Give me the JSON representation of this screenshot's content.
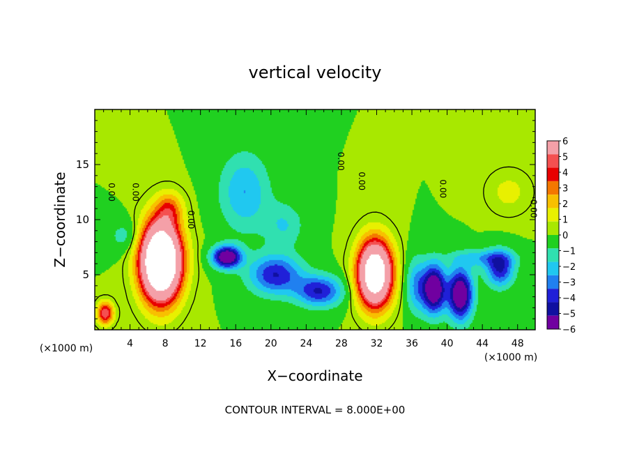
{
  "chart_data": {
    "type": "heatmap",
    "title": "vertical velocity",
    "xlabel": "X−coordinate",
    "ylabel": "Z−coordinate",
    "x_unit_left": "(×1000 m)",
    "x_unit_right": "(×1000 m)",
    "footer": "CONTOUR INTERVAL = 8.000E+00",
    "xlim": [
      0,
      50
    ],
    "ylim": [
      0,
      20
    ],
    "x_ticks": [
      4,
      8,
      12,
      16,
      20,
      24,
      28,
      32,
      36,
      40,
      44,
      48
    ],
    "x_tick_labels": [
      "4",
      "8",
      "12",
      "16",
      "20",
      "24",
      "28",
      "32",
      "36",
      "40",
      "44",
      "48"
    ],
    "y_ticks": [
      5,
      10,
      15
    ],
    "y_tick_labels": [
      "5",
      "10",
      "15"
    ],
    "colorbar": {
      "levels": [
        6,
        5,
        4,
        3,
        2,
        1,
        0,
        -1,
        -2,
        -3,
        -4,
        -5,
        -6
      ],
      "labels": [
        "6",
        "5",
        "4",
        "3",
        "2",
        "1",
        "0",
        "−1",
        "−2",
        "−3",
        "−4",
        "−5",
        "−6"
      ],
      "colors": [
        "#f4a0a8",
        "#f45050",
        "#e80000",
        "#f47800",
        "#f8c000",
        "#e8f000",
        "#a8e800",
        "#20d020",
        "#30e0b0",
        "#20c8f0",
        "#2080f0",
        "#2020d8",
        "#1010a0",
        "#7000a0"
      ]
    },
    "contour_label": "0.00",
    "background_value": 0,
    "features": [
      {
        "x": 7.5,
        "z": 6.2,
        "sx": 2.2,
        "sz": 3.4,
        "amp": 18
      },
      {
        "x": 31.8,
        "z": 5.1,
        "sx": 1.9,
        "sz": 2.9,
        "amp": 14
      },
      {
        "x": 1.2,
        "z": 1.5,
        "sx": 0.9,
        "sz": 1.0,
        "amp": 6
      },
      {
        "x": 8.5,
        "z": 11.0,
        "sx": 1.5,
        "sz": 1.5,
        "amp": 3
      },
      {
        "x": 15.0,
        "z": 6.6,
        "sx": 1.6,
        "sz": 1.0,
        "amp": -8
      },
      {
        "x": 17.0,
        "z": 12.5,
        "sx": 2.8,
        "sz": 3.5,
        "amp": -3
      },
      {
        "x": 20.5,
        "z": 5.0,
        "sx": 3.0,
        "sz": 1.8,
        "amp": -5
      },
      {
        "x": 25.5,
        "z": 3.5,
        "sx": 2.6,
        "sz": 1.4,
        "amp": -5
      },
      {
        "x": 21.5,
        "z": 9.5,
        "sx": 2.2,
        "sz": 2.0,
        "amp": -2
      },
      {
        "x": 38.5,
        "z": 3.7,
        "sx": 1.3,
        "sz": 2.2,
        "amp": -8
      },
      {
        "x": 41.5,
        "z": 3.2,
        "sx": 1.4,
        "sz": 2.3,
        "amp": -8
      },
      {
        "x": 46.0,
        "z": 5.5,
        "sx": 1.6,
        "sz": 1.6,
        "amp": -5
      },
      {
        "x": 36.5,
        "z": 4.0,
        "sx": 1.2,
        "sz": 2.5,
        "amp": -3
      },
      {
        "x": 44.0,
        "z": 6.5,
        "sx": 3.5,
        "sz": 0.8,
        "amp": -2.5
      },
      {
        "x": 47.0,
        "z": 12.5,
        "sx": 2.5,
        "sz": 2.0,
        "amp": 1.3
      },
      {
        "x": 3.5,
        "z": 8.5,
        "sx": 2.0,
        "sz": 1.5,
        "amp": -1.5
      }
    ]
  }
}
